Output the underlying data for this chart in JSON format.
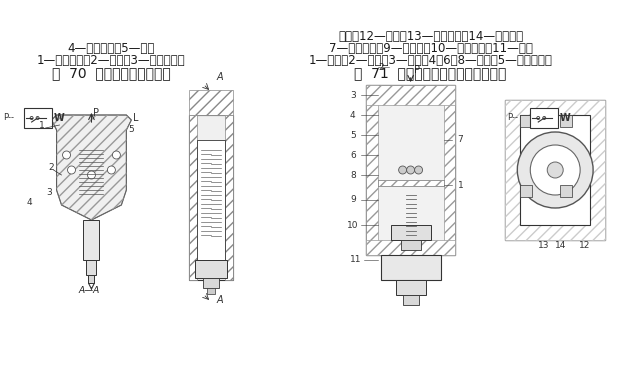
{
  "title_left": "图  70  单柱塞式压力继电器",
  "title_right": "图  71  薄膜式（膜片式）压力继电器",
  "caption_left_line1": "1—限位挡头；2—顶杆；3—调节螺丝；",
  "caption_left_line2": "4—微动开关；5—柱塞",
  "caption_right_line1": "1—杠杆；2—薄膜；3—柱塞；4、6、8—钢球；5—钢球弹簧；",
  "caption_right_line2": "7—调节螺钉；9—弹簧座；10—调压弹簧；11—调节",
  "caption_right_line3": "螺钉；12—销轴；13—连接螺钉；14—微动开关",
  "bg_color": "#ffffff",
  "text_color": "#1a1a1a",
  "title_fontsize": 10,
  "caption_fontsize": 8.5,
  "fig_width": 6.35,
  "fig_height": 3.68,
  "dpi": 100,
  "diagram_placeholder_color": "#d0d0d0",
  "diagram_line_color": "#333333"
}
